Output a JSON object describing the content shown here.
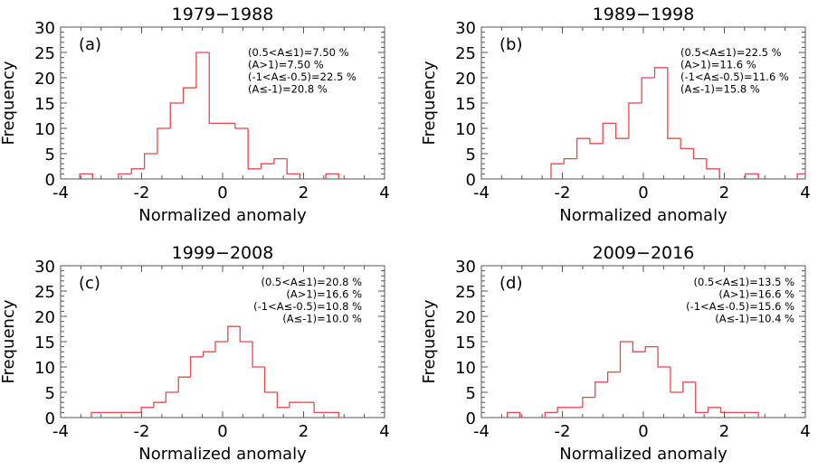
{
  "figure": {
    "xlabel": "Normalized anomaly",
    "ylabel": "Frequency"
  },
  "chart_data": [
    {
      "type": "bar",
      "subtype": "step-histogram",
      "title": "1979−1988",
      "panel_label": "(a)",
      "xlabel": "Normalized anomaly",
      "ylabel": "Frequency",
      "xlim": [
        -4,
        4
      ],
      "ylim": [
        0,
        30
      ],
      "xticks": [
        -4,
        -2,
        0,
        2,
        4
      ],
      "yticks": [
        0,
        5,
        10,
        15,
        20,
        25,
        30
      ],
      "color": "#e8474b",
      "bin_edges": [
        -3.53,
        -3.21,
        -2.89,
        -2.57,
        -2.25,
        -1.93,
        -1.61,
        -1.29,
        -0.97,
        -0.65,
        -0.33,
        -0.01,
        0.31,
        0.63,
        0.95,
        1.27,
        1.59,
        1.91,
        2.23,
        2.55,
        2.87
      ],
      "counts": [
        1,
        0,
        0,
        1,
        2,
        5,
        10,
        15,
        18,
        25,
        11,
        11,
        10,
        2,
        3,
        4,
        1,
        0,
        0,
        1
      ],
      "annotations": [
        {
          "text": "(0.5<A≤1)=7.50 %",
          "align": "left"
        },
        {
          "text": "(A>1)=7.50 %",
          "align": "left"
        },
        {
          "text": "(-1<A≤-0.5)=22.5 %",
          "align": "left"
        },
        {
          "text": "(A≤-1)=20.8 %",
          "align": "left"
        }
      ]
    },
    {
      "type": "bar",
      "subtype": "step-histogram",
      "title": "1989−1998",
      "panel_label": "(b)",
      "xlabel": "Normalized anomaly",
      "ylabel": "Frequency",
      "xlim": [
        -4,
        4
      ],
      "ylim": [
        0,
        30
      ],
      "xticks": [
        -4,
        -2,
        0,
        2,
        4
      ],
      "yticks": [
        0,
        5,
        10,
        15,
        20,
        25,
        30
      ],
      "color": "#e8474b",
      "bin_edges": [
        -2.28,
        -1.96,
        -1.64,
        -1.32,
        -1.0,
        -0.68,
        -0.36,
        -0.04,
        0.28,
        0.6,
        0.92,
        1.24,
        1.56,
        1.88,
        2.2,
        2.52,
        2.84,
        3.16,
        3.48,
        3.8,
        4.12
      ],
      "counts": [
        3,
        4,
        8,
        7,
        11,
        8,
        15,
        20,
        22,
        8,
        6,
        4,
        2,
        0,
        0,
        1,
        0,
        0,
        0,
        1
      ],
      "annotations": [
        {
          "text": "(0.5<A≤1)=22.5 %",
          "align": "left"
        },
        {
          "text": "(A>1)=11.6 %",
          "align": "left"
        },
        {
          "text": "(-1<A≤-0.5)=11.6 %",
          "align": "left"
        },
        {
          "text": "(A≤-1)=15.8 %",
          "align": "left"
        }
      ]
    },
    {
      "type": "bar",
      "subtype": "step-histogram",
      "title": "1999−2008",
      "panel_label": "(c)",
      "xlabel": "Normalized anomaly",
      "ylabel": "Frequency",
      "xlim": [
        -4,
        4
      ],
      "ylim": [
        0,
        30
      ],
      "xticks": [
        -4,
        -2,
        0,
        2,
        4
      ],
      "yticks": [
        0,
        5,
        10,
        15,
        20,
        25,
        30
      ],
      "color": "#e8474b",
      "bin_edges": [
        -3.24,
        -2.93,
        -2.62,
        -2.31,
        -2.01,
        -1.7,
        -1.4,
        -1.09,
        -0.79,
        -0.48,
        -0.18,
        0.13,
        0.43,
        0.74,
        1.04,
        1.35,
        1.65,
        1.96,
        2.26,
        2.57,
        2.87
      ],
      "counts": [
        1,
        1,
        1,
        1,
        2,
        3,
        5,
        8,
        12,
        13,
        15,
        18,
        15,
        10,
        5,
        2,
        3,
        3,
        1,
        1
      ],
      "annotations": [
        {
          "text": "(0.5<A≤1)=20.8 %",
          "align": "right"
        },
        {
          "text": "(A>1)=16.6 %",
          "align": "right"
        },
        {
          "text": "(-1<A≤-0.5)=10.8 %",
          "align": "right"
        },
        {
          "text": "(A≤-1)=10.0 %",
          "align": "right"
        }
      ]
    },
    {
      "type": "bar",
      "subtype": "step-histogram",
      "title": "2009−2016",
      "panel_label": "(d)",
      "xlabel": "Normalized anomaly",
      "ylabel": "Frequency",
      "xlim": [
        -4,
        4
      ],
      "ylim": [
        0,
        30
      ],
      "xticks": [
        -4,
        -2,
        0,
        2,
        4
      ],
      "yticks": [
        0,
        5,
        10,
        15,
        20,
        25,
        30
      ],
      "color": "#e8474b",
      "bin_edges": [
        -3.36,
        -3.05,
        -2.74,
        -2.43,
        -2.12,
        -1.81,
        -1.5,
        -1.19,
        -0.88,
        -0.57,
        -0.26,
        0.05,
        0.36,
        0.67,
        0.98,
        1.29,
        1.6,
        1.91,
        2.22,
        2.53,
        2.84
      ],
      "counts": [
        1,
        0,
        0,
        1,
        2,
        2,
        4,
        7,
        9,
        15,
        13,
        14,
        10,
        5,
        7,
        1,
        2,
        1,
        1,
        1
      ],
      "annotations": [
        {
          "text": "(0.5<A≤1)=13.5 %",
          "align": "right"
        },
        {
          "text": "(A>1)=16.6 %",
          "align": "right"
        },
        {
          "text": "(-1<A≤-0.5)=15.6 %",
          "align": "right"
        },
        {
          "text": "(A≤-1)=10.4 %",
          "align": "right"
        }
      ]
    }
  ]
}
